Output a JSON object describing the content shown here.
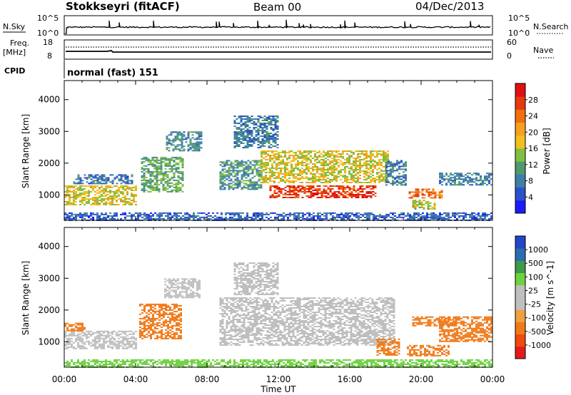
{
  "header": {
    "station": "Stokkseyri (fitACF)",
    "beam": "Beam 00",
    "date": "04/Dec/2013"
  },
  "nsky_panel": {
    "left_label": "N.Sky",
    "left_ticks": [
      "10^5",
      "10^0"
    ],
    "right_label": "N.Search",
    "right_ticks": [
      "10^5",
      "10^0"
    ]
  },
  "freq_panel": {
    "left_label_1": "Freq.",
    "left_label_2": "[MHz]",
    "left_ticks": [
      "18",
      "8"
    ],
    "right_label": "Nave",
    "right_ticks": [
      "60",
      "0"
    ]
  },
  "cpid_panel": {
    "label": "CPID",
    "text": "normal (fast) 151"
  },
  "colors": {
    "axis": "#000000",
    "background": "#ffffff",
    "power_scale": [
      "#1a1aff",
      "#2a52c8",
      "#3f7fa8",
      "#4f9a6e",
      "#7fbf3f",
      "#f0c020",
      "#f5a020",
      "#f07010",
      "#e83810",
      "#e01010"
    ],
    "velocity_scale": [
      "#e41a1c",
      "#f04a10",
      "#f07a1a",
      "#f0a040",
      "#bfbfbf",
      "#bfbfbf",
      "#6ed23f",
      "#3c9a4a",
      "#2c6cb0",
      "#2346c8"
    ]
  },
  "chart_data": [
    {
      "type": "heatmap",
      "title": "",
      "xlabel": "Time UT",
      "ylabel": "Slant Range [km]",
      "x_ticks": [
        "00:00",
        "04:00",
        "08:00",
        "12:00",
        "16:00",
        "20:00",
        "00:00"
      ],
      "x_range_hours": [
        0,
        24
      ],
      "y_ticks": [
        "1000",
        "2000",
        "3000",
        "4000"
      ],
      "ylim": [
        200,
        4600
      ],
      "colorbar_label": "Power [dB]",
      "colorbar_ticks": [
        "4",
        "8",
        "12",
        "16",
        "20",
        "24",
        "28"
      ],
      "color_range": [
        0,
        32
      ],
      "echo_regions": [
        {
          "t0": 0.0,
          "t1": 4.0,
          "r0": 700,
          "r1": 1300,
          "value": 17
        },
        {
          "t0": 0.5,
          "t1": 3.8,
          "r0": 1350,
          "r1": 1650,
          "value": 7
        },
        {
          "t0": 4.3,
          "t1": 6.6,
          "r0": 1100,
          "r1": 2200,
          "value": 12
        },
        {
          "t0": 5.7,
          "t1": 7.7,
          "r0": 2400,
          "r1": 3000,
          "value": 9
        },
        {
          "t0": 8.7,
          "t1": 11.0,
          "r0": 1200,
          "r1": 2100,
          "value": 10
        },
        {
          "t0": 9.5,
          "t1": 12.0,
          "r0": 2500,
          "r1": 3500,
          "value": 8
        },
        {
          "t0": 11.0,
          "t1": 18.2,
          "r0": 1400,
          "r1": 2400,
          "value": 17
        },
        {
          "t0": 11.5,
          "t1": 17.5,
          "r0": 900,
          "r1": 1300,
          "value": 28
        },
        {
          "t0": 18.0,
          "t1": 19.2,
          "r0": 1300,
          "r1": 2100,
          "value": 8
        },
        {
          "t0": 19.3,
          "t1": 21.2,
          "r0": 900,
          "r1": 1200,
          "value": 24
        },
        {
          "t0": 19.5,
          "t1": 20.8,
          "r0": 550,
          "r1": 850,
          "value": 16
        },
        {
          "t0": 21.0,
          "t1": 24.0,
          "r0": 1300,
          "r1": 1700,
          "value": 8
        },
        {
          "t0": 0.0,
          "t1": 24.0,
          "r0": 200,
          "r1": 450,
          "value": 6
        }
      ]
    },
    {
      "type": "heatmap",
      "title": "",
      "xlabel": "Time UT",
      "ylabel": "Slant Range [km]",
      "x_ticks": [
        "00:00",
        "04:00",
        "08:00",
        "12:00",
        "16:00",
        "20:00",
        "00:00"
      ],
      "x_range_hours": [
        0,
        24
      ],
      "y_ticks": [
        "1000",
        "2000",
        "3000",
        "4000"
      ],
      "ylim": [
        200,
        4600
      ],
      "colorbar_label": "Velocity [m s^-1]",
      "colorbar_ticks": [
        "1000",
        "500",
        "100",
        "25",
        "-25",
        "-100",
        "-500",
        "-1000"
      ],
      "echo_regions": [
        {
          "t0": 0.0,
          "t1": 4.0,
          "r0": 800,
          "r1": 1350,
          "value": 0
        },
        {
          "t0": 0.0,
          "t1": 1.2,
          "r0": 1350,
          "r1": 1600,
          "value": -150
        },
        {
          "t0": 4.2,
          "t1": 6.5,
          "r0": 1100,
          "r1": 2200,
          "value": -200
        },
        {
          "t0": 5.6,
          "t1": 7.6,
          "r0": 2400,
          "r1": 3000,
          "value": 0
        },
        {
          "t0": 8.7,
          "t1": 18.5,
          "r0": 900,
          "r1": 2400,
          "value": 0
        },
        {
          "t0": 9.5,
          "t1": 12.0,
          "r0": 2500,
          "r1": 3500,
          "value": 0
        },
        {
          "t0": 17.5,
          "t1": 18.8,
          "r0": 600,
          "r1": 1100,
          "value": -250
        },
        {
          "t0": 19.2,
          "t1": 21.5,
          "r0": 550,
          "r1": 900,
          "value": -300
        },
        {
          "t0": 19.5,
          "t1": 22.0,
          "r0": 1500,
          "r1": 1800,
          "value": -150
        },
        {
          "t0": 21.0,
          "t1": 24.0,
          "r0": 1000,
          "r1": 1800,
          "value": -300
        },
        {
          "t0": 0.0,
          "t1": 24.0,
          "r0": 200,
          "r1": 450,
          "value": 60
        }
      ]
    }
  ]
}
